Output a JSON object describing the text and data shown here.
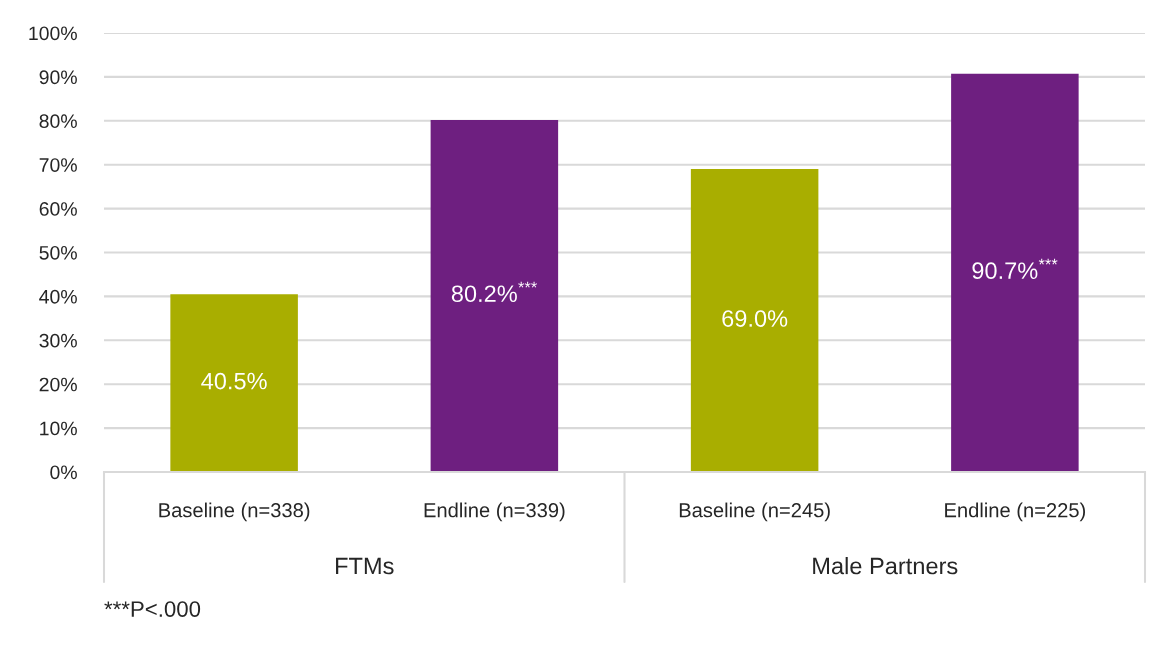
{
  "chart_data": {
    "type": "bar",
    "categories": [
      "Baseline (n=338)",
      "Endline (n=339)",
      "Baseline (n=245)",
      "Endline (n=225)"
    ],
    "values": [
      40.5,
      80.2,
      69.0,
      90.7
    ],
    "colors": [
      "#a9ae00",
      "#6e1f80",
      "#a9ae00",
      "#6e1f80"
    ],
    "value_labels": [
      "40.5%",
      "80.2%$^{***}$",
      "69.0%",
      "90.7%$^{***}$"
    ],
    "ylim": [
      0,
      100
    ],
    "yticks": [
      {
        "value": 0,
        "label": "0%"
      },
      {
        "value": 10,
        "label": "10%"
      },
      {
        "value": 20,
        "label": "20%"
      },
      {
        "value": 30,
        "label": "30%"
      },
      {
        "value": 40,
        "label": "40%"
      },
      {
        "value": 50,
        "label": "50%"
      },
      {
        "value": 60,
        "label": "60%"
      },
      {
        "value": 70,
        "label": "70%"
      },
      {
        "value": 80,
        "label": "80%"
      },
      {
        "value": 90,
        "label": "90%"
      },
      {
        "value": 100,
        "label": "100%"
      }
    ],
    "grid": "y",
    "annotations": [
      "FTMs",
      "Male Partners",
      "***P<.000"
    ]
  }
}
